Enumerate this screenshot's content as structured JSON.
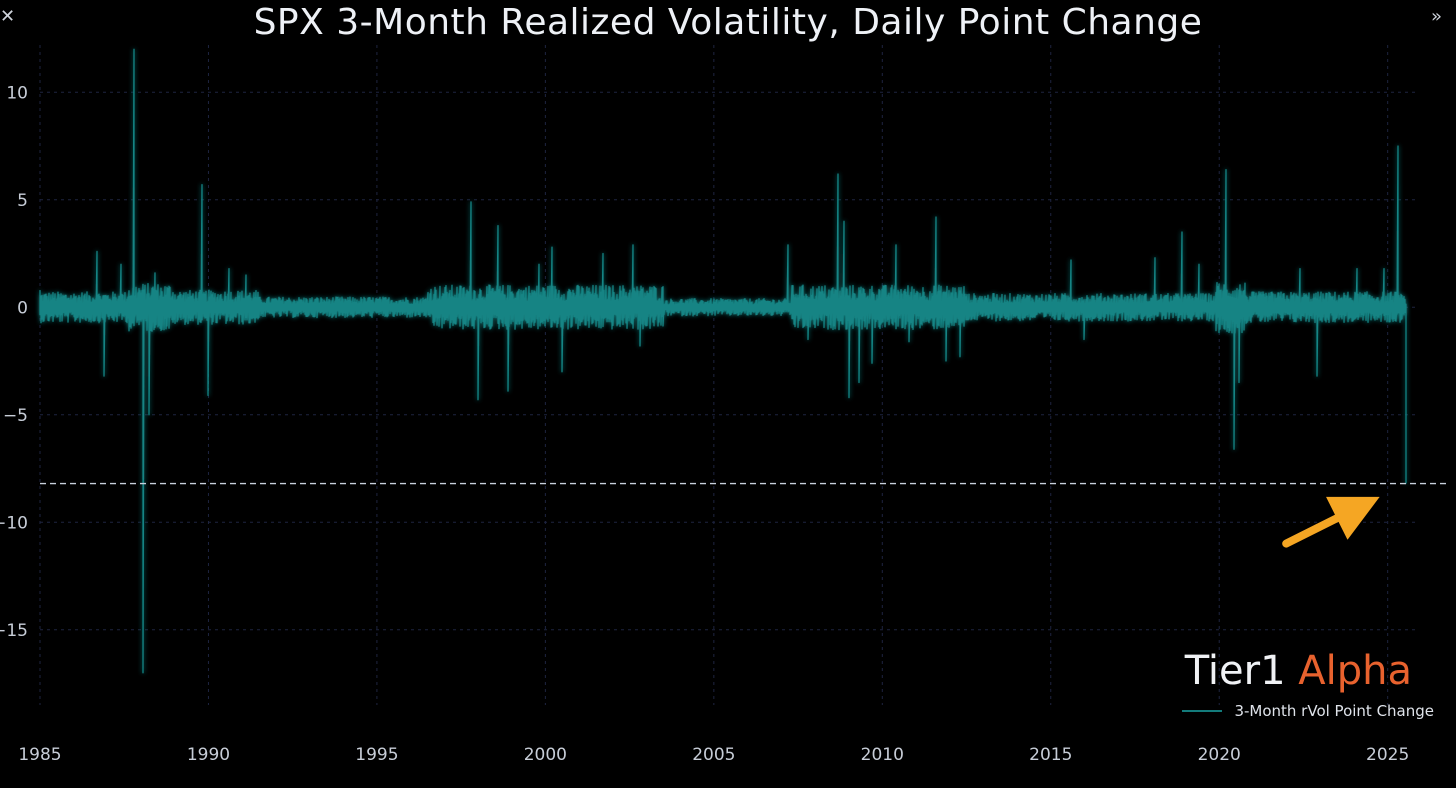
{
  "ui": {
    "close_icon": "close-icon",
    "next_icon": "chevron-double-right-icon",
    "close_glyph": "✕",
    "next_glyph": "»"
  },
  "brand": {
    "part1": "Tier1",
    "part2": "Alpha",
    "color1": "#f0f2f5",
    "color2": "#e8622e"
  },
  "colors": {
    "background": "#000000",
    "series": "#138484",
    "grid": "#1e2440",
    "reference_line": "#c8d0dc",
    "arrow": "#f5a623"
  },
  "chart_data": {
    "type": "line",
    "title": "SPX 3-Month Realized Volatility, Daily Point Change",
    "xlabel": "",
    "ylabel": "",
    "xlim": [
      1985,
      2025.9
    ],
    "ylim": [
      -18.5,
      12.2
    ],
    "x_ticks": [
      1985,
      1990,
      1995,
      2000,
      2005,
      2010,
      2015,
      2020,
      2025
    ],
    "y_ticks": [
      10,
      5,
      0,
      -5,
      -10,
      -15
    ],
    "x_tick_labels": [
      "1985",
      "1990",
      "1995",
      "2000",
      "2005",
      "2010",
      "2015",
      "2020",
      "2025"
    ],
    "y_tick_labels": [
      "10",
      "5",
      "0",
      "−5",
      "−10",
      "−15"
    ],
    "grid": true,
    "legend_position": "bottom-right",
    "series": [
      {
        "name": "3-Month rVol Point Change",
        "baseline_noise": [
          {
            "start": 1985.0,
            "end": 1987.6,
            "amp": 0.9
          },
          {
            "start": 1987.6,
            "end": 1989.0,
            "amp": 1.4
          },
          {
            "start": 1989.0,
            "end": 1991.5,
            "amp": 1.0
          },
          {
            "start": 1991.5,
            "end": 1996.5,
            "amp": 0.6
          },
          {
            "start": 1996.5,
            "end": 2003.5,
            "amp": 1.3
          },
          {
            "start": 2003.5,
            "end": 2007.3,
            "amp": 0.5
          },
          {
            "start": 2007.3,
            "end": 2012.5,
            "amp": 1.3
          },
          {
            "start": 2012.5,
            "end": 2019.9,
            "amp": 0.8
          },
          {
            "start": 2019.9,
            "end": 2020.8,
            "amp": 1.5
          },
          {
            "start": 2020.8,
            "end": 2025.4,
            "amp": 0.9
          }
        ],
        "spikes": [
          {
            "x": 1985.0,
            "y": 0.8
          },
          {
            "x": 1986.7,
            "y": 2.6
          },
          {
            "x": 1986.9,
            "y": -3.2
          },
          {
            "x": 1987.4,
            "y": 2.0
          },
          {
            "x": 1987.8,
            "y": 12.0
          },
          {
            "x": 1988.05,
            "y": -17.0
          },
          {
            "x": 1988.25,
            "y": -5.0
          },
          {
            "x": 1988.4,
            "y": 1.6
          },
          {
            "x": 1989.8,
            "y": 5.7
          },
          {
            "x": 1990.0,
            "y": -4.1
          },
          {
            "x": 1990.6,
            "y": 1.8
          },
          {
            "x": 1991.1,
            "y": 1.5
          },
          {
            "x": 1997.8,
            "y": 4.9
          },
          {
            "x": 1998.0,
            "y": -4.3
          },
          {
            "x": 1998.6,
            "y": 3.8
          },
          {
            "x": 1998.9,
            "y": -3.9
          },
          {
            "x": 1999.8,
            "y": 2.0
          },
          {
            "x": 2000.2,
            "y": 2.8
          },
          {
            "x": 2000.5,
            "y": -3.0
          },
          {
            "x": 2001.7,
            "y": 2.5
          },
          {
            "x": 2002.6,
            "y": 2.9
          },
          {
            "x": 2002.8,
            "y": -1.8
          },
          {
            "x": 2007.2,
            "y": 2.9
          },
          {
            "x": 2007.8,
            "y": -1.5
          },
          {
            "x": 2008.7,
            "y": 6.2
          },
          {
            "x": 2008.85,
            "y": 4.0
          },
          {
            "x": 2009.0,
            "y": -4.2
          },
          {
            "x": 2009.3,
            "y": -3.5
          },
          {
            "x": 2009.7,
            "y": -2.6
          },
          {
            "x": 2010.4,
            "y": 2.9
          },
          {
            "x": 2010.8,
            "y": -1.6
          },
          {
            "x": 2011.6,
            "y": 4.2
          },
          {
            "x": 2011.9,
            "y": -2.5
          },
          {
            "x": 2012.3,
            "y": -2.3
          },
          {
            "x": 2015.6,
            "y": 2.2
          },
          {
            "x": 2016.0,
            "y": -1.5
          },
          {
            "x": 2018.1,
            "y": 2.3
          },
          {
            "x": 2018.9,
            "y": 3.5
          },
          {
            "x": 2019.4,
            "y": 2.0
          },
          {
            "x": 2020.2,
            "y": 6.4
          },
          {
            "x": 2020.45,
            "y": -6.6
          },
          {
            "x": 2020.6,
            "y": -3.5
          },
          {
            "x": 2022.4,
            "y": 1.8
          },
          {
            "x": 2022.9,
            "y": -3.2
          },
          {
            "x": 2024.1,
            "y": 1.8
          },
          {
            "x": 2024.9,
            "y": 1.8
          },
          {
            "x": 2025.3,
            "y": 7.5
          },
          {
            "x": 2025.55,
            "y": -8.2
          }
        ]
      }
    ],
    "reference_lines": [
      {
        "axis": "y",
        "value": -8.2,
        "style": "dashed"
      }
    ],
    "annotations": [
      {
        "type": "arrow",
        "points_to": {
          "x": 2025.55,
          "y": -8.2
        },
        "color": "#f5a623"
      }
    ]
  }
}
